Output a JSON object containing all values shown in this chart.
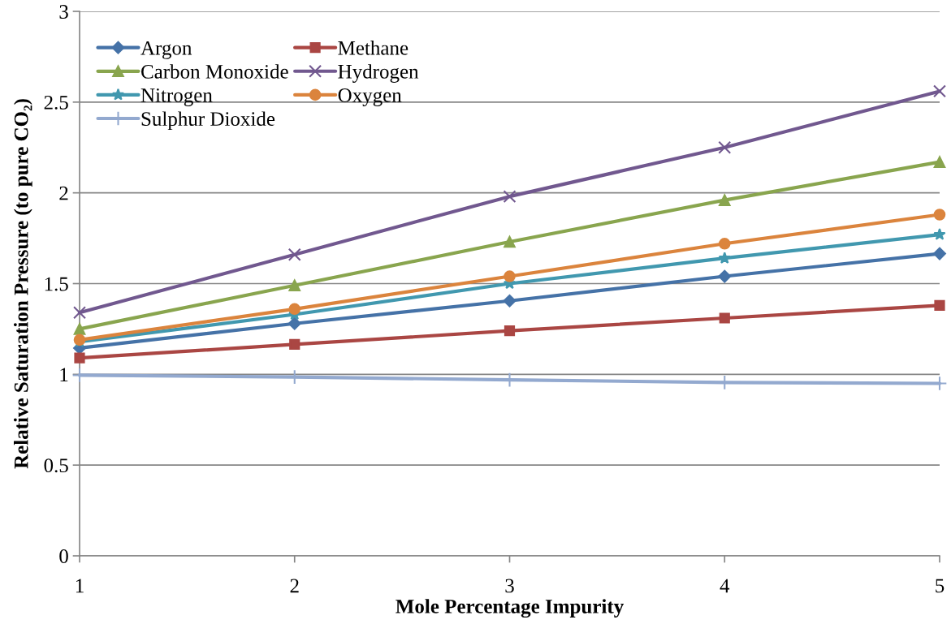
{
  "chart_data": {
    "type": "line",
    "xlabel": "Mole Percentage Impurity",
    "ylabel": "Relative Saturation Pressure (to pure CO₂)",
    "x": [
      1,
      2,
      3,
      4,
      5
    ],
    "xlim": [
      1,
      5
    ],
    "xticks": [
      1,
      2,
      3,
      4,
      5
    ],
    "ylim": [
      0,
      3
    ],
    "yticks": [
      0,
      {
        "value": 0.5,
        "label": "0.5"
      },
      1,
      {
        "value": 1.5,
        "label": "1.5"
      },
      2,
      {
        "value": 2.5,
        "label": "2.5"
      },
      3
    ],
    "grid": "y",
    "legend": "top left",
    "line_style": "solid",
    "series": [
      {
        "name": "Argon",
        "color": "#4572a7",
        "marker": "diamond",
        "values": [
          1.145,
          1.28,
          1.405,
          1.54,
          1.665
        ]
      },
      {
        "name": "Methane",
        "color": "#aa4643",
        "marker": "square",
        "values": [
          1.09,
          1.165,
          1.24,
          1.31,
          1.38
        ]
      },
      {
        "name": "Carbon Monoxide",
        "color": "#89a54e",
        "marker": "triangle",
        "values": [
          1.25,
          1.49,
          1.73,
          1.96,
          2.17
        ]
      },
      {
        "name": "Hydrogen",
        "color": "#71588f",
        "marker": "cross",
        "values": [
          1.34,
          1.66,
          1.98,
          2.25,
          2.56
        ]
      },
      {
        "name": "Nitrogen",
        "color": "#4198af",
        "marker": "star",
        "values": [
          1.18,
          1.33,
          1.5,
          1.64,
          1.77
        ]
      },
      {
        "name": "Oxygen",
        "color": "#db843d",
        "marker": "circle",
        "values": [
          1.19,
          1.36,
          1.54,
          1.72,
          1.88
        ]
      },
      {
        "name": "Sulphur Dioxide",
        "color": "#93a9cf",
        "marker": "plus",
        "values": [
          0.995,
          0.985,
          0.97,
          0.955,
          0.95
        ]
      }
    ]
  }
}
